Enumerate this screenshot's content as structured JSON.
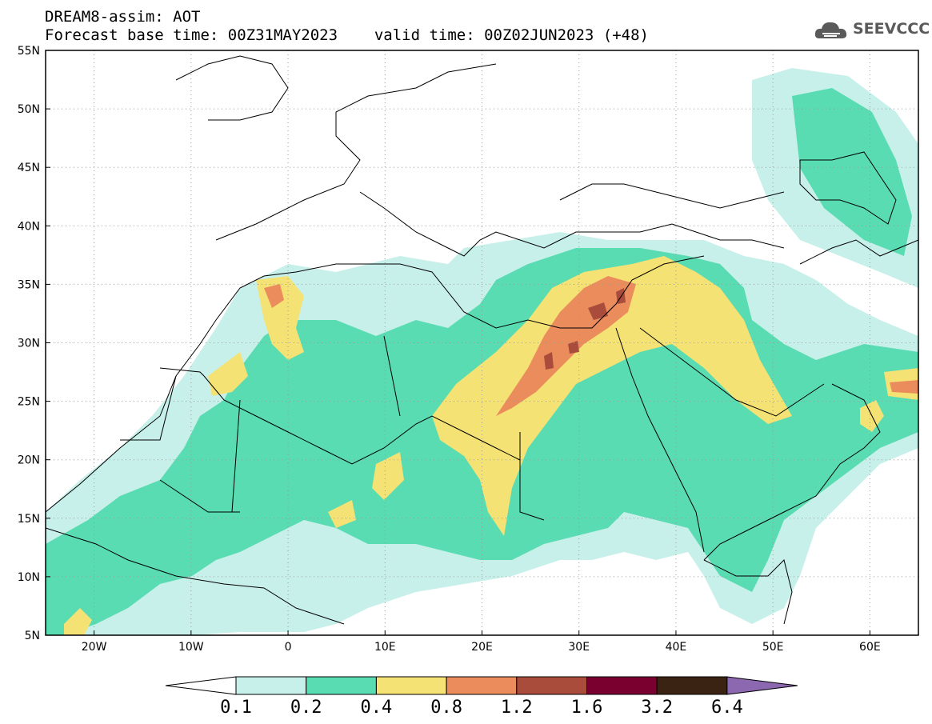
{
  "header": {
    "model": "DREAM8-assim: AOT",
    "base_time_line": "Forecast base time: 00Z31MAY2023",
    "valid_time_line": "valid time: 00Z02JUN2023 (+48)"
  },
  "logo": {
    "text": "SEEVCCC",
    "icon": "cloud-icon",
    "color": "#5a5a5a"
  },
  "map": {
    "lat_labels": [
      "55N",
      "50N",
      "45N",
      "40N",
      "35N",
      "30N",
      "25N",
      "20N",
      "15N",
      "10N",
      "5N"
    ],
    "lon_labels": [
      "20W",
      "10W",
      "0",
      "10E",
      "20E",
      "30E",
      "40E",
      "50E",
      "60E"
    ],
    "lat_range": [
      5,
      55
    ],
    "lon_range": [
      -25,
      65
    ],
    "grid": "dotted"
  },
  "colorbar": {
    "labels": [
      "0.1",
      "0.2",
      "0.4",
      "0.8",
      "1.2",
      "1.6",
      "3.2",
      "6.4"
    ],
    "colors": [
      "#c8f0ea",
      "#5adcb2",
      "#f5e274",
      "#ea8c5c",
      "#a94c3c",
      "#7a0030",
      "#3b2314",
      "#8c68b0"
    ]
  }
}
